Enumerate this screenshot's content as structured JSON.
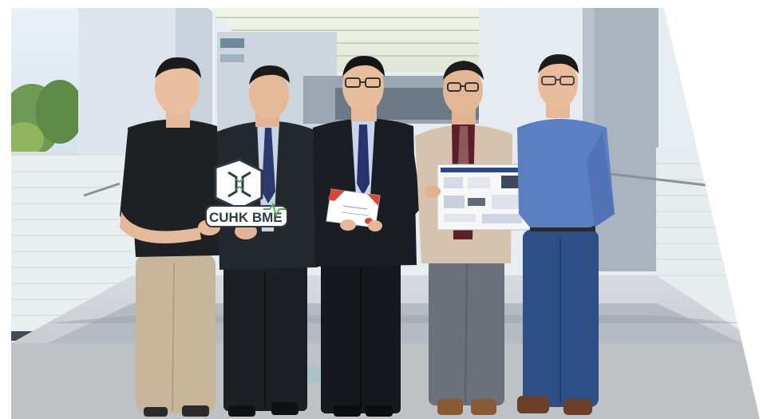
{
  "photo": {
    "subject": "group-photo",
    "sign": {
      "logo_text": "CUHK BME"
    },
    "colors": {
      "sky": "#dfe9f2",
      "wall": "#e9edf2",
      "floor": "#c9cccf",
      "accent_green": "#4caf50"
    }
  }
}
